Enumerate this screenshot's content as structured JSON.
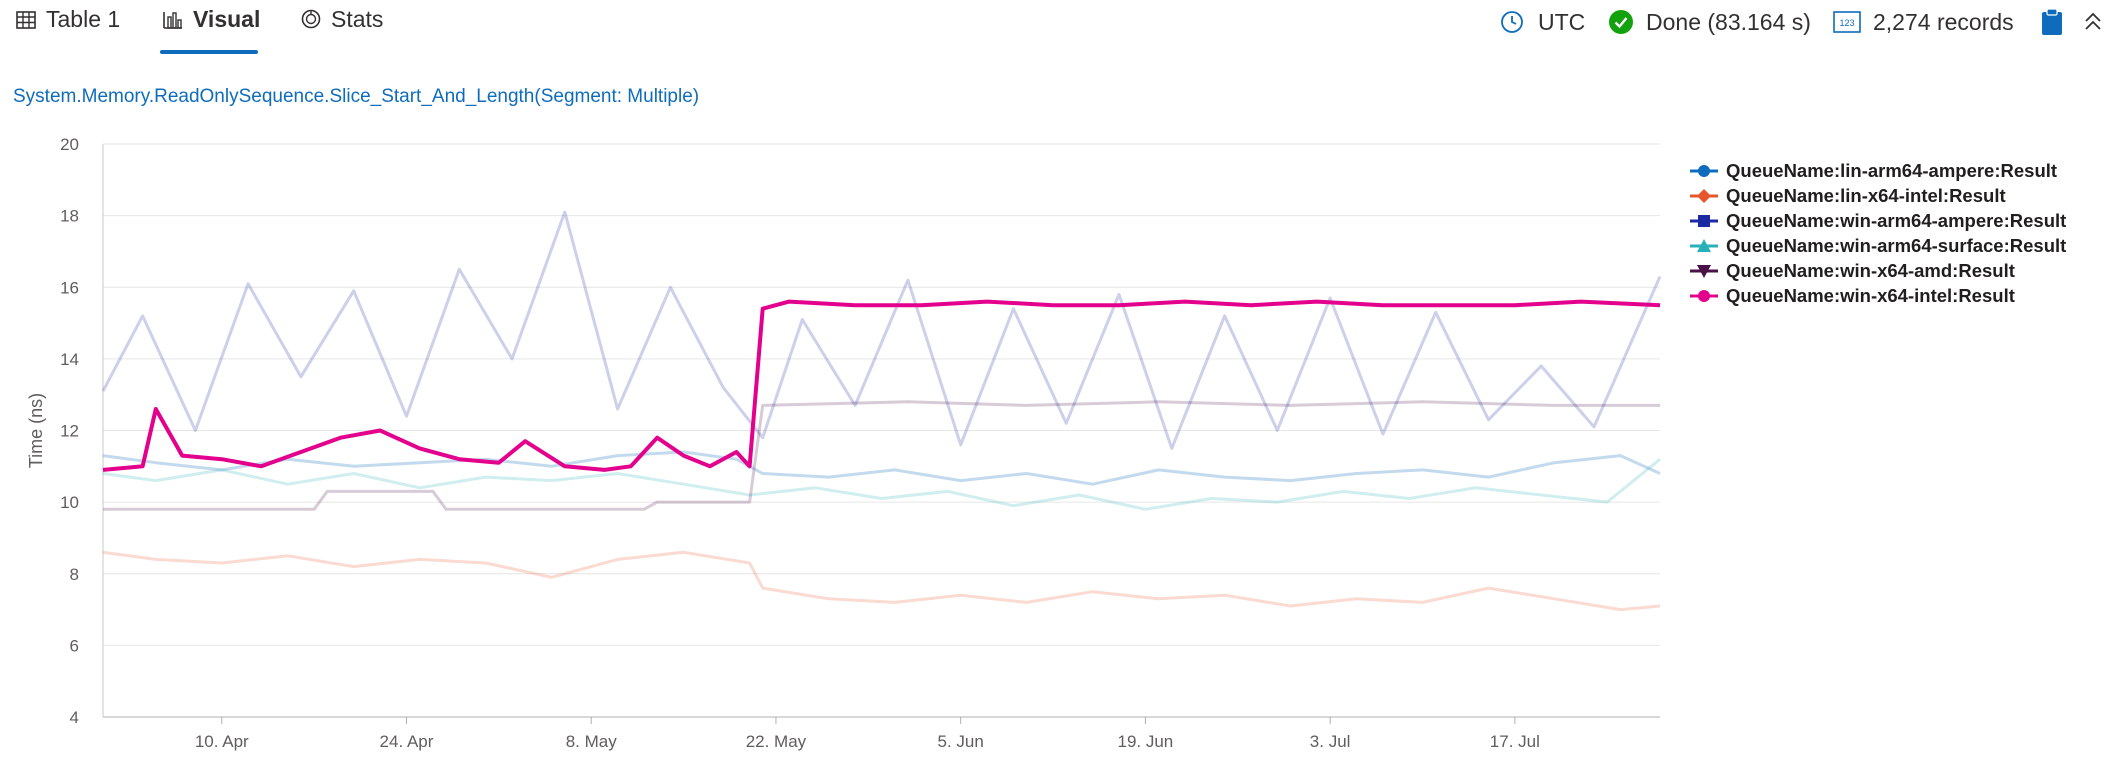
{
  "tabs": [
    {
      "label": "Table 1",
      "icon": "table-icon"
    },
    {
      "label": "Visual",
      "icon": "bar-chart-icon",
      "active": true
    },
    {
      "label": "Stats",
      "icon": "stats-icon"
    }
  ],
  "status": {
    "timezone": "UTC",
    "done_text": "Done (83.164 s)",
    "records_text": "2,274 records",
    "done_color": "#13a10e",
    "accent_color": "#0f6cbd"
  },
  "chart_title": "System.Memory.ReadOnlySequence.Slice_Start_And_Length(Segment: Multiple)",
  "chart_data": {
    "type": "line",
    "title": "System.Memory.ReadOnlySequence.Slice_Start_And_Length(Segment: Multiple)",
    "xlabel": "",
    "ylabel": "Time (ns)",
    "ylim": [
      4,
      20
    ],
    "yticks": [
      4,
      6,
      8,
      10,
      12,
      14,
      16,
      18,
      20
    ],
    "xlim": [
      "2024-04-01",
      "2024-07-28"
    ],
    "xticks": [
      {
        "date": "2024-04-10",
        "label": "10. Apr"
      },
      {
        "date": "2024-04-24",
        "label": "24. Apr"
      },
      {
        "date": "2024-05-08",
        "label": "8. May"
      },
      {
        "date": "2024-05-22",
        "label": "22. May"
      },
      {
        "date": "2024-06-05",
        "label": "5. Jun"
      },
      {
        "date": "2024-06-19",
        "label": "19. Jun"
      },
      {
        "date": "2024-07-03",
        "label": "3. Jul"
      },
      {
        "date": "2024-07-17",
        "label": "17. Jul"
      }
    ],
    "grid": true,
    "legend_position": "right",
    "series": [
      {
        "name": "QueueName:lin-arm64-ampere:Result",
        "color": "#0f6cbd",
        "marker": "circle",
        "opacity": 0.25,
        "points": [
          [
            "2024-04-01",
            11.3
          ],
          [
            "2024-04-05",
            11.1
          ],
          [
            "2024-04-10",
            10.9
          ],
          [
            "2024-04-15",
            11.2
          ],
          [
            "2024-04-20",
            11.0
          ],
          [
            "2024-04-25",
            11.1
          ],
          [
            "2024-04-30",
            11.2
          ],
          [
            "2024-05-05",
            11.0
          ],
          [
            "2024-05-10",
            11.3
          ],
          [
            "2024-05-15",
            11.4
          ],
          [
            "2024-05-19",
            11.2
          ],
          [
            "2024-05-21",
            10.8
          ],
          [
            "2024-05-26",
            10.7
          ],
          [
            "2024-05-31",
            10.9
          ],
          [
            "2024-06-05",
            10.6
          ],
          [
            "2024-06-10",
            10.8
          ],
          [
            "2024-06-15",
            10.5
          ],
          [
            "2024-06-20",
            10.9
          ],
          [
            "2024-06-25",
            10.7
          ],
          [
            "2024-06-30",
            10.6
          ],
          [
            "2024-07-05",
            10.8
          ],
          [
            "2024-07-10",
            10.9
          ],
          [
            "2024-07-15",
            10.7
          ],
          [
            "2024-07-20",
            11.1
          ],
          [
            "2024-07-25",
            11.3
          ],
          [
            "2024-07-28",
            10.8
          ]
        ]
      },
      {
        "name": "QueueName:lin-x64-intel:Result",
        "color": "#e8562c",
        "marker": "diamond",
        "opacity": 0.22,
        "points": [
          [
            "2024-04-01",
            8.6
          ],
          [
            "2024-04-05",
            8.4
          ],
          [
            "2024-04-10",
            8.3
          ],
          [
            "2024-04-15",
            8.5
          ],
          [
            "2024-04-20",
            8.2
          ],
          [
            "2024-04-25",
            8.4
          ],
          [
            "2024-04-30",
            8.3
          ],
          [
            "2024-05-05",
            7.9
          ],
          [
            "2024-05-10",
            8.4
          ],
          [
            "2024-05-15",
            8.6
          ],
          [
            "2024-05-20",
            8.3
          ],
          [
            "2024-05-21",
            7.6
          ],
          [
            "2024-05-26",
            7.3
          ],
          [
            "2024-05-31",
            7.2
          ],
          [
            "2024-06-05",
            7.4
          ],
          [
            "2024-06-10",
            7.2
          ],
          [
            "2024-06-15",
            7.5
          ],
          [
            "2024-06-20",
            7.3
          ],
          [
            "2024-06-25",
            7.4
          ],
          [
            "2024-06-30",
            7.1
          ],
          [
            "2024-07-05",
            7.3
          ],
          [
            "2024-07-10",
            7.2
          ],
          [
            "2024-07-15",
            7.6
          ],
          [
            "2024-07-20",
            7.3
          ],
          [
            "2024-07-25",
            7.0
          ],
          [
            "2024-07-28",
            7.1
          ]
        ]
      },
      {
        "name": "QueueName:win-arm64-ampere:Result",
        "color": "#1b2aa0",
        "marker": "square",
        "opacity": 0.22,
        "points": [
          [
            "2024-04-01",
            13.1
          ],
          [
            "2024-04-04",
            15.2
          ],
          [
            "2024-04-08",
            12.0
          ],
          [
            "2024-04-12",
            16.1
          ],
          [
            "2024-04-16",
            13.5
          ],
          [
            "2024-04-20",
            15.9
          ],
          [
            "2024-04-24",
            12.4
          ],
          [
            "2024-04-28",
            16.5
          ],
          [
            "2024-05-02",
            14.0
          ],
          [
            "2024-05-06",
            18.1
          ],
          [
            "2024-05-10",
            12.6
          ],
          [
            "2024-05-14",
            16.0
          ],
          [
            "2024-05-18",
            13.2
          ],
          [
            "2024-05-21",
            11.8
          ],
          [
            "2024-05-24",
            15.1
          ],
          [
            "2024-05-28",
            12.7
          ],
          [
            "2024-06-01",
            16.2
          ],
          [
            "2024-06-05",
            11.6
          ],
          [
            "2024-06-09",
            15.4
          ],
          [
            "2024-06-13",
            12.2
          ],
          [
            "2024-06-17",
            15.8
          ],
          [
            "2024-06-21",
            11.5
          ],
          [
            "2024-06-25",
            15.2
          ],
          [
            "2024-06-29",
            12.0
          ],
          [
            "2024-07-03",
            15.7
          ],
          [
            "2024-07-07",
            11.9
          ],
          [
            "2024-07-11",
            15.3
          ],
          [
            "2024-07-15",
            12.3
          ],
          [
            "2024-07-19",
            13.8
          ],
          [
            "2024-07-23",
            12.1
          ],
          [
            "2024-07-28",
            16.3
          ]
        ]
      },
      {
        "name": "QueueName:win-arm64-surface:Result",
        "color": "#2ab0b8",
        "marker": "triangle",
        "opacity": 0.22,
        "points": [
          [
            "2024-04-01",
            10.8
          ],
          [
            "2024-04-05",
            10.6
          ],
          [
            "2024-04-10",
            10.9
          ],
          [
            "2024-04-15",
            10.5
          ],
          [
            "2024-04-20",
            10.8
          ],
          [
            "2024-04-25",
            10.4
          ],
          [
            "2024-04-30",
            10.7
          ],
          [
            "2024-05-05",
            10.6
          ],
          [
            "2024-05-10",
            10.8
          ],
          [
            "2024-05-15",
            10.5
          ],
          [
            "2024-05-20",
            10.2
          ],
          [
            "2024-05-25",
            10.4
          ],
          [
            "2024-05-30",
            10.1
          ],
          [
            "2024-06-04",
            10.3
          ],
          [
            "2024-06-09",
            9.9
          ],
          [
            "2024-06-14",
            10.2
          ],
          [
            "2024-06-19",
            9.8
          ],
          [
            "2024-06-24",
            10.1
          ],
          [
            "2024-06-29",
            10.0
          ],
          [
            "2024-07-04",
            10.3
          ],
          [
            "2024-07-09",
            10.1
          ],
          [
            "2024-07-14",
            10.4
          ],
          [
            "2024-07-19",
            10.2
          ],
          [
            "2024-07-24",
            10.0
          ],
          [
            "2024-07-28",
            11.2
          ]
        ]
      },
      {
        "name": "QueueName:win-x64-amd:Result",
        "color": "#4b1248",
        "marker": "triangle-down",
        "opacity": 0.22,
        "points": [
          [
            "2024-04-01",
            9.8
          ],
          [
            "2024-04-10",
            9.8
          ],
          [
            "2024-04-17",
            9.8
          ],
          [
            "2024-04-18",
            10.3
          ],
          [
            "2024-04-26",
            10.3
          ],
          [
            "2024-04-27",
            9.8
          ],
          [
            "2024-05-12",
            9.8
          ],
          [
            "2024-05-13",
            10.0
          ],
          [
            "2024-05-20",
            10.0
          ],
          [
            "2024-05-21",
            12.7
          ],
          [
            "2024-06-01",
            12.8
          ],
          [
            "2024-06-10",
            12.7
          ],
          [
            "2024-06-20",
            12.8
          ],
          [
            "2024-06-30",
            12.7
          ],
          [
            "2024-07-10",
            12.8
          ],
          [
            "2024-07-20",
            12.7
          ],
          [
            "2024-07-28",
            12.7
          ]
        ]
      },
      {
        "name": "QueueName:win-x64-intel:Result",
        "color": "#e3008c",
        "marker": "circle",
        "opacity": 1.0,
        "points": [
          [
            "2024-04-01",
            10.9
          ],
          [
            "2024-04-04",
            11.0
          ],
          [
            "2024-04-05",
            12.6
          ],
          [
            "2024-04-07",
            11.3
          ],
          [
            "2024-04-10",
            11.2
          ],
          [
            "2024-04-13",
            11.0
          ],
          [
            "2024-04-16",
            11.4
          ],
          [
            "2024-04-19",
            11.8
          ],
          [
            "2024-04-22",
            12.0
          ],
          [
            "2024-04-25",
            11.5
          ],
          [
            "2024-04-28",
            11.2
          ],
          [
            "2024-05-01",
            11.1
          ],
          [
            "2024-05-03",
            11.7
          ],
          [
            "2024-05-06",
            11.0
          ],
          [
            "2024-05-09",
            10.9
          ],
          [
            "2024-05-11",
            11.0
          ],
          [
            "2024-05-13",
            11.8
          ],
          [
            "2024-05-15",
            11.3
          ],
          [
            "2024-05-17",
            11.0
          ],
          [
            "2024-05-19",
            11.4
          ],
          [
            "2024-05-20",
            11.0
          ],
          [
            "2024-05-21",
            15.4
          ],
          [
            "2024-05-23",
            15.6
          ],
          [
            "2024-05-28",
            15.5
          ],
          [
            "2024-06-02",
            15.5
          ],
          [
            "2024-06-07",
            15.6
          ],
          [
            "2024-06-12",
            15.5
          ],
          [
            "2024-06-17",
            15.5
          ],
          [
            "2024-06-22",
            15.6
          ],
          [
            "2024-06-27",
            15.5
          ],
          [
            "2024-07-02",
            15.6
          ],
          [
            "2024-07-07",
            15.5
          ],
          [
            "2024-07-12",
            15.5
          ],
          [
            "2024-07-17",
            15.5
          ],
          [
            "2024-07-22",
            15.6
          ],
          [
            "2024-07-28",
            15.5
          ]
        ]
      }
    ]
  }
}
